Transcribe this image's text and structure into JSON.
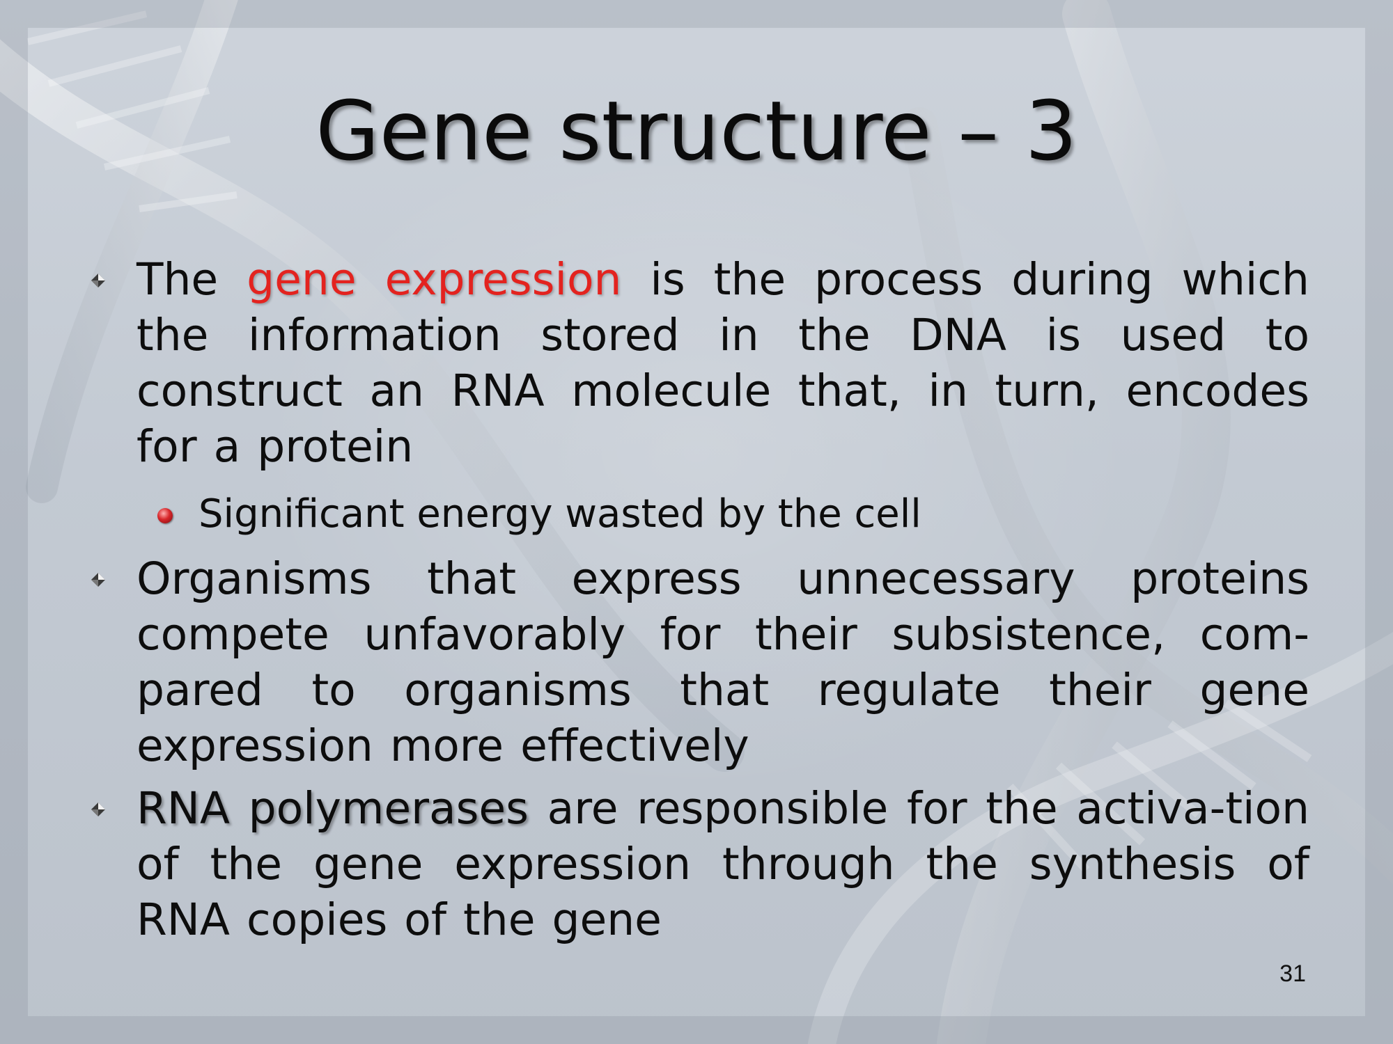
{
  "slide": {
    "title": "Gene structure – 3",
    "bullets": [
      {
        "segments": [
          {
            "text": "The ",
            "style": "normal"
          },
          {
            "text": "gene expression",
            "style": "highlight-red"
          },
          {
            "text": " is the process during which the information stored in the DNA is used to construct an RNA molecule that, in turn, encodes for a protein",
            "style": "normal"
          }
        ],
        "sub_bullets": [
          "Significant energy wasted by the cell"
        ]
      },
      {
        "segments": [
          {
            "text": "Organisms that express unnecessary proteins compete unfavorably for their subsistence, com-pared to organisms that regulate their gene expression more effectively",
            "style": "normal"
          }
        ],
        "sub_bullets": []
      },
      {
        "segments": [
          {
            "text": "RNA polymerases",
            "style": "highlight-dark"
          },
          {
            "text": " are responsible for the activa-tion of the gene expression through the synthesis of RNA copies of the gene",
            "style": "normal"
          }
        ],
        "sub_bullets": []
      }
    ],
    "page_number": "31"
  },
  "colors": {
    "highlight_red": "#e3231f",
    "text": "#0d0d0d",
    "background": "#c4cbd4"
  },
  "icons": {
    "bullet": "diamond-bullet-icon",
    "sub_bullet": "red-ball-bullet-icon"
  }
}
